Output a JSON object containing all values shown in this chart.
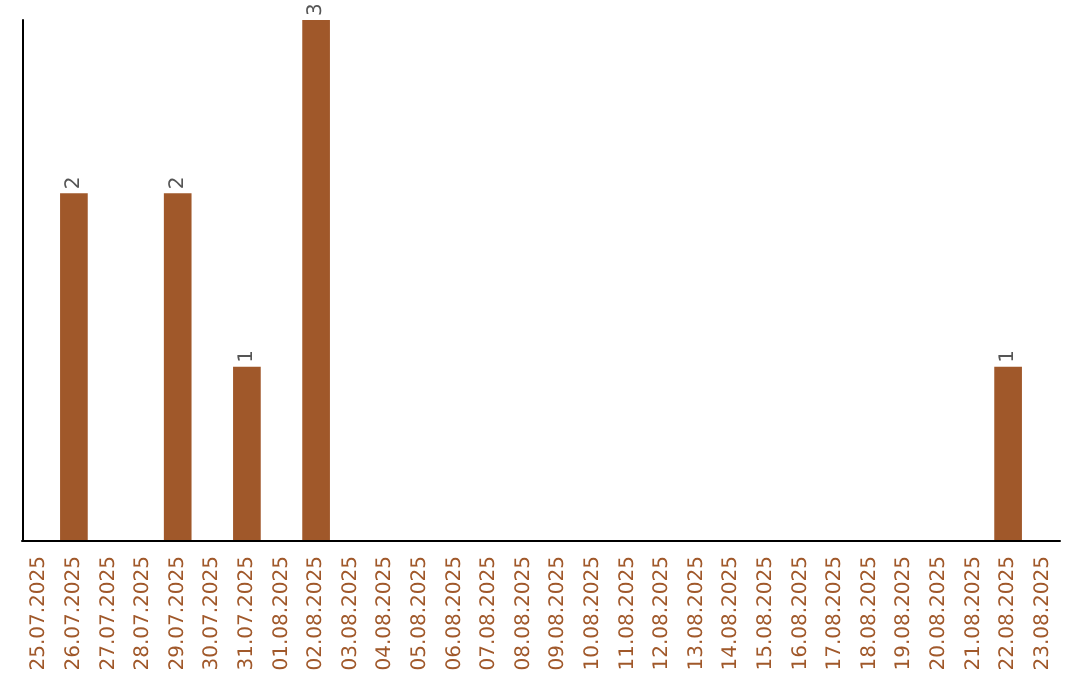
{
  "chart_data": {
    "type": "bar",
    "categories": [
      "25.07.2025",
      "26.07.2025",
      "27.07.2025",
      "28.07.2025",
      "29.07.2025",
      "30.07.2025",
      "31.07.2025",
      "01.08.2025",
      "02.08.2025",
      "03.08.2025",
      "04.08.2025",
      "05.08.2025",
      "06.08.2025",
      "07.08.2025",
      "08.08.2025",
      "09.08.2025",
      "10.08.2025",
      "11.08.2025",
      "12.08.2025",
      "13.08.2025",
      "14.08.2025",
      "15.08.2025",
      "16.08.2025",
      "17.08.2025",
      "18.08.2025",
      "19.08.2025",
      "20.08.2025",
      "21.08.2025",
      "22.08.2025",
      "23.08.2025"
    ],
    "values": [
      0,
      2,
      0,
      0,
      2,
      0,
      1,
      0,
      3,
      0,
      0,
      0,
      0,
      0,
      0,
      0,
      0,
      0,
      0,
      0,
      0,
      0,
      0,
      0,
      0,
      0,
      0,
      0,
      1,
      0
    ],
    "value_labels": [
      null,
      "2",
      null,
      null,
      "2",
      null,
      "1",
      null,
      "3",
      null,
      null,
      null,
      null,
      null,
      null,
      null,
      null,
      null,
      null,
      null,
      null,
      null,
      null,
      null,
      null,
      null,
      null,
      null,
      "1",
      null
    ],
    "color": "#a0582a",
    "grid": false,
    "tick_labels": "x"
  }
}
